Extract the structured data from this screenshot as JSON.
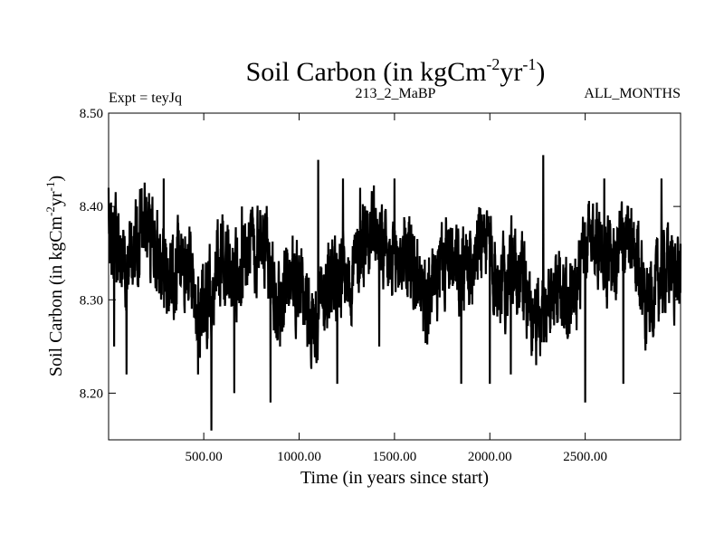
{
  "chart_data": {
    "type": "line",
    "title_main": "Soil Carbon (in kgCm",
    "title_sup1": "-2",
    "title_mid": "yr",
    "title_sup2": "-1",
    "title_end": ")",
    "expt_label": "Expt = teyJq",
    "subtitle_center": "213_2_MaBP",
    "subtitle_right": "ALL_MONTHS",
    "xlabel": "Time (in years since start)",
    "ylabel_main": "Soil Carbon (in kgCm",
    "ylabel_sup1": "-2",
    "ylabel_mid": "yr",
    "ylabel_sup2": "-1",
    "ylabel_end": ")",
    "xlim": [
      1,
      3000
    ],
    "ylim": [
      8.15,
      8.5
    ],
    "x_ticks": [
      {
        "value": 500,
        "label": "500.00"
      },
      {
        "value": 1000,
        "label": "1000.00"
      },
      {
        "value": 1500,
        "label": "1500.00"
      },
      {
        "value": 2000,
        "label": "2000.00"
      },
      {
        "value": 2500,
        "label": "2500.00"
      }
    ],
    "y_ticks": [
      {
        "value": 8.2,
        "label": "8.20"
      },
      {
        "value": 8.3,
        "label": "8.30"
      },
      {
        "value": 8.4,
        "label": "8.40"
      },
      {
        "value": 8.5,
        "label": "8.50"
      }
    ],
    "series": [
      {
        "name": "Soil Carbon",
        "color": "#000000",
        "mean": 8.33,
        "min": 8.16,
        "max": 8.455,
        "n_points": 3000,
        "key_points": [
          [
            1,
            8.42
          ],
          [
            30,
            8.25
          ],
          [
            95,
            8.22
          ],
          [
            150,
            8.4
          ],
          [
            290,
            8.43
          ],
          [
            470,
            8.22
          ],
          [
            540,
            8.16
          ],
          [
            570,
            8.36
          ],
          [
            660,
            8.2
          ],
          [
            700,
            8.4
          ],
          [
            850,
            8.19
          ],
          [
            900,
            8.25
          ],
          [
            1100,
            8.45
          ],
          [
            1200,
            8.21
          ],
          [
            1230,
            8.43
          ],
          [
            1320,
            8.42
          ],
          [
            1420,
            8.25
          ],
          [
            1500,
            8.43
          ],
          [
            1550,
            8.33
          ],
          [
            1850,
            8.21
          ],
          [
            2000,
            8.21
          ],
          [
            2110,
            8.22
          ],
          [
            2280,
            8.455
          ],
          [
            2410,
            8.26
          ],
          [
            2500,
            8.19
          ],
          [
            2600,
            8.43
          ],
          [
            2700,
            8.21
          ],
          [
            2900,
            8.43
          ],
          [
            3000,
            8.36
          ]
        ]
      }
    ]
  }
}
